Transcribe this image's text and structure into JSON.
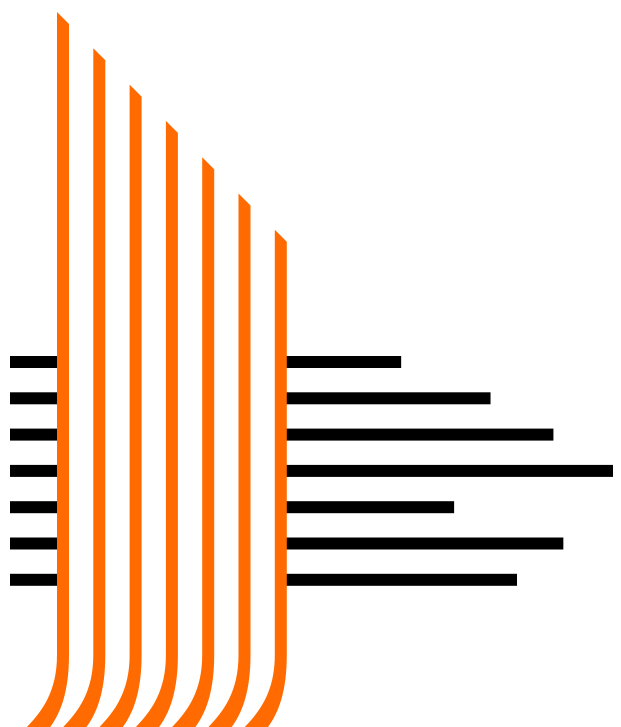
{
  "graphic": {
    "stripe_color": "#FF6B00",
    "bar_color": "#000000",
    "background": "#FFFFFF",
    "stripe_count": 7,
    "bar_count": 7,
    "bar_lengths_relative": [
      0.36,
      0.63,
      0.82,
      1.0,
      0.52,
      0.85,
      0.71
    ]
  }
}
